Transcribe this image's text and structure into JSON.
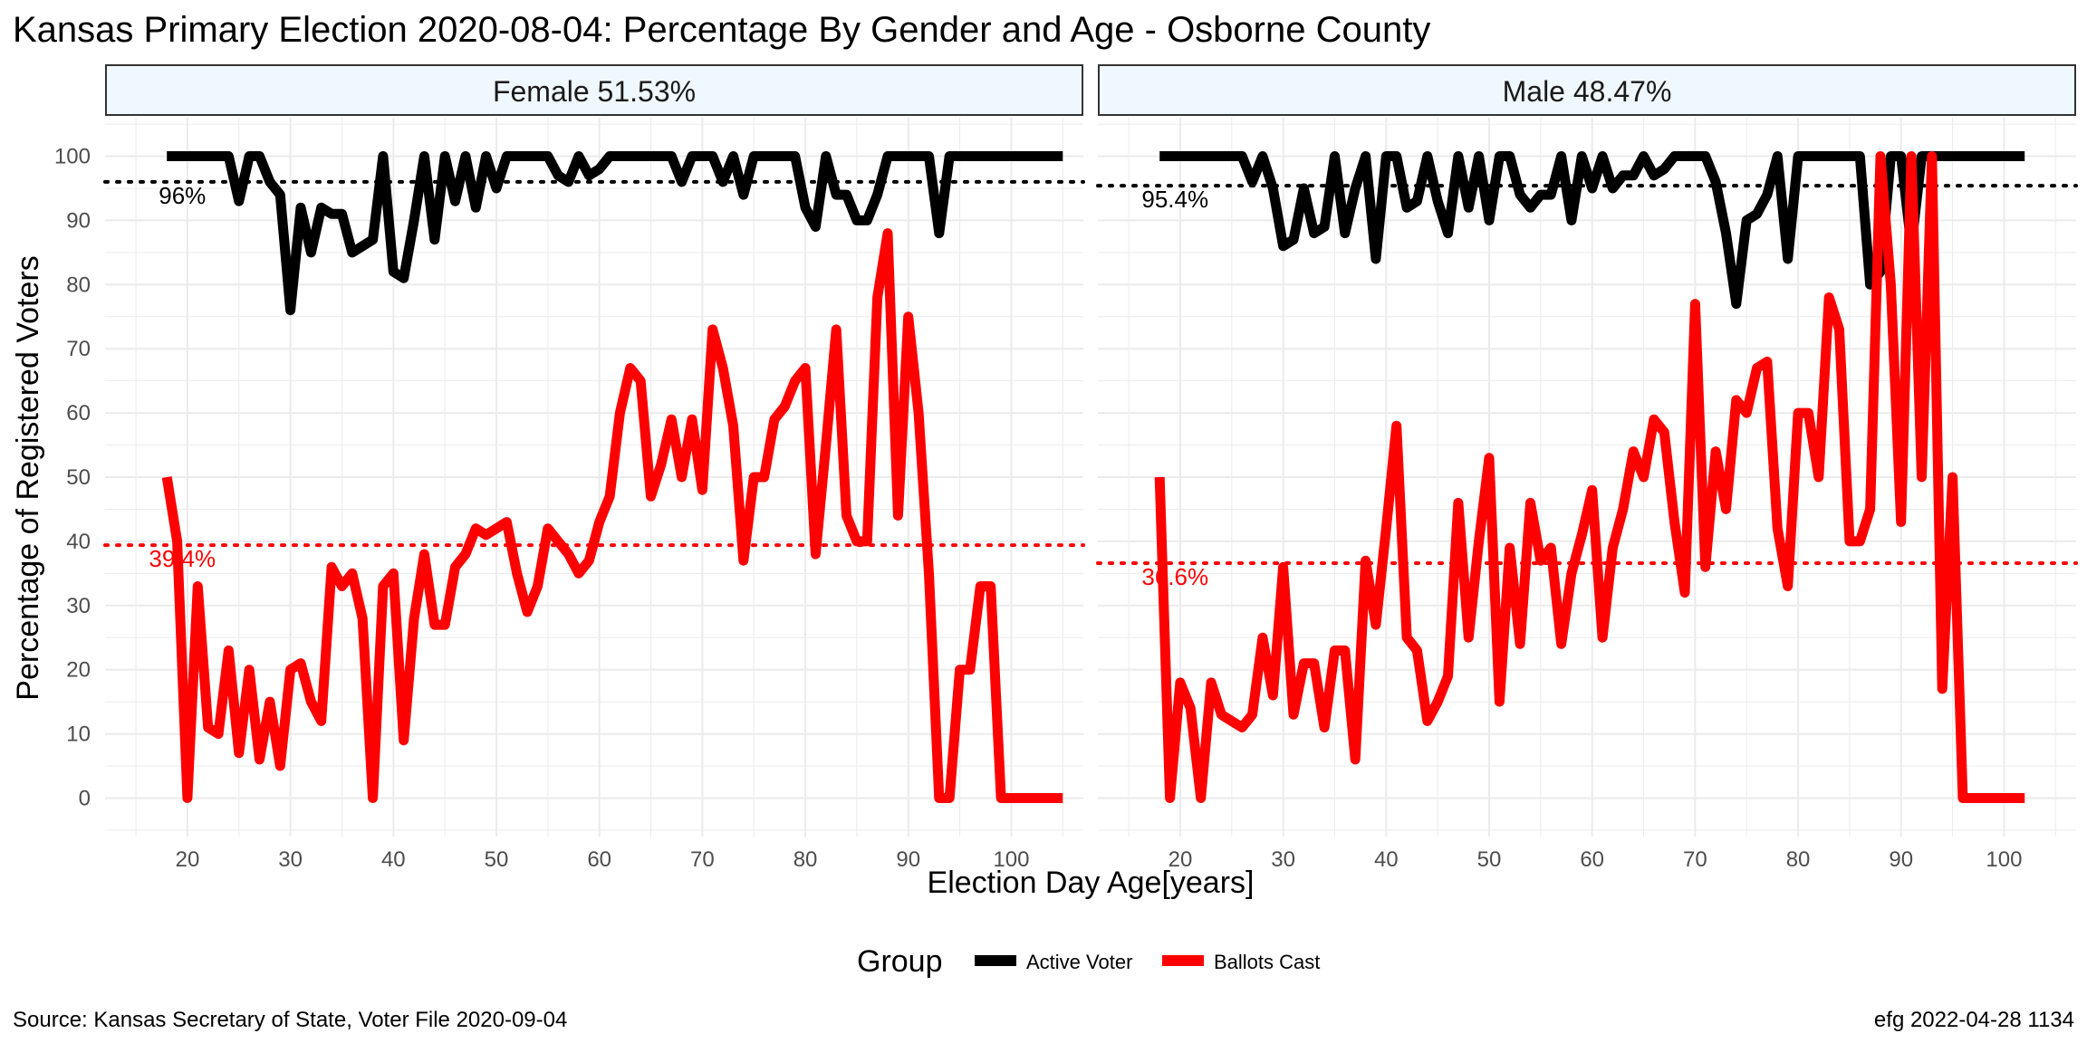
{
  "title": "Kansas Primary Election 2020-08-04:  Percentage By Gender and Age - Osborne County",
  "source": "Source:  Kansas Secretary of State, Voter File  2020-09-04",
  "stamp": "efg 2022-04-28 1134",
  "colors": {
    "active": "#000000",
    "ballots": "#ff0000",
    "strip_fill": "#f0f8ff",
    "grid": "#ebebeb"
  },
  "legend": {
    "title": "Group",
    "items": [
      {
        "label": "Active Voter",
        "color": "#000000"
      },
      {
        "label": "Ballots Cast",
        "color": "#ff0000"
      }
    ],
    "placement": "bottom"
  },
  "chart_data": [
    {
      "type": "line",
      "panel": "Female 51.53%",
      "xlabel": "Election Day Age[years]",
      "ylabel": "Percentage of Registered Voters",
      "xlim": [
        12,
        107
      ],
      "ylim": [
        -6,
        106
      ],
      "xticks": [
        20,
        30,
        40,
        50,
        60,
        70,
        80,
        90,
        100
      ],
      "yticks": [
        0,
        10,
        20,
        30,
        40,
        50,
        60,
        70,
        80,
        90,
        100
      ],
      "grid": true,
      "series": [
        {
          "name": "Active Voter",
          "color": "#000000",
          "x": [
            18,
            19,
            20,
            21,
            22,
            23,
            24,
            25,
            26,
            27,
            28,
            29,
            30,
            31,
            32,
            33,
            34,
            35,
            36,
            37,
            38,
            39,
            40,
            41,
            42,
            43,
            44,
            45,
            46,
            47,
            48,
            49,
            50,
            51,
            52,
            53,
            54,
            55,
            56,
            57,
            58,
            59,
            60,
            61,
            62,
            63,
            64,
            65,
            66,
            67,
            68,
            69,
            70,
            71,
            72,
            73,
            74,
            75,
            76,
            77,
            78,
            79,
            80,
            81,
            82,
            83,
            84,
            85,
            86,
            87,
            88,
            89,
            90,
            91,
            92,
            93,
            94,
            95,
            96,
            97,
            98,
            99,
            100,
            101,
            102,
            103,
            104,
            105
          ],
          "y": [
            100,
            100,
            100,
            100,
            100,
            100,
            100,
            93,
            100,
            100,
            96,
            94,
            76,
            92,
            85,
            92,
            91,
            91,
            85,
            86,
            87,
            100,
            82,
            81,
            90,
            100,
            87,
            100,
            93,
            100,
            92,
            100,
            95,
            100,
            100,
            100,
            100,
            100,
            97,
            96,
            100,
            97,
            98,
            100,
            100,
            100,
            100,
            100,
            100,
            100,
            96,
            100,
            100,
            100,
            96,
            100,
            94,
            100,
            100,
            100,
            100,
            100,
            92,
            89,
            100,
            94,
            94,
            90,
            90,
            94,
            100,
            100,
            100,
            100,
            100,
            88,
            100,
            100,
            100,
            100,
            100,
            100,
            100,
            100,
            100,
            100,
            100,
            100
          ]
        },
        {
          "name": "Ballots Cast",
          "color": "#ff0000",
          "x": [
            18,
            19,
            20,
            21,
            22,
            23,
            24,
            25,
            26,
            27,
            28,
            29,
            30,
            31,
            32,
            33,
            34,
            35,
            36,
            37,
            38,
            39,
            40,
            41,
            42,
            43,
            44,
            45,
            46,
            47,
            48,
            49,
            50,
            51,
            52,
            53,
            54,
            55,
            56,
            57,
            58,
            59,
            60,
            61,
            62,
            63,
            64,
            65,
            66,
            67,
            68,
            69,
            70,
            71,
            72,
            73,
            74,
            75,
            76,
            77,
            78,
            79,
            80,
            81,
            82,
            83,
            84,
            85,
            86,
            87,
            88,
            89,
            90,
            91,
            92,
            93,
            94,
            95,
            96,
            97,
            98,
            99,
            100,
            101,
            102,
            103,
            104,
            105
          ],
          "y": [
            50,
            40,
            0,
            33,
            11,
            10,
            23,
            7,
            20,
            6,
            15,
            5,
            20,
            21,
            15,
            12,
            36,
            33,
            35,
            28,
            0,
            33,
            35,
            9,
            28,
            38,
            27,
            27,
            36,
            38,
            42,
            41,
            42,
            43,
            35,
            29,
            33,
            42,
            40,
            38,
            35,
            37,
            43,
            47,
            60,
            67,
            65,
            47,
            52,
            59,
            50,
            59,
            48,
            73,
            67,
            58,
            37,
            50,
            50,
            59,
            61,
            65,
            67,
            38,
            55,
            73,
            44,
            40,
            40,
            78,
            88,
            44,
            75,
            60,
            35,
            0,
            0,
            20,
            20,
            33,
            33,
            0,
            0,
            0,
            0,
            0,
            0,
            0
          ]
        }
      ],
      "reference_lines": [
        {
          "series": "Active Voter",
          "value": 96,
          "label": "96%"
        },
        {
          "series": "Ballots Cast",
          "value": 39.4,
          "label": "39.4%"
        }
      ]
    },
    {
      "type": "line",
      "panel": "Male 48.47%",
      "xlabel": "Election Day Age[years]",
      "ylabel": "Percentage of Registered Voters",
      "xlim": [
        12,
        107
      ],
      "ylim": [
        -6,
        106
      ],
      "xticks": [
        20,
        30,
        40,
        50,
        60,
        70,
        80,
        90,
        100
      ],
      "yticks": [
        0,
        10,
        20,
        30,
        40,
        50,
        60,
        70,
        80,
        90,
        100
      ],
      "grid": true,
      "series": [
        {
          "name": "Active Voter",
          "color": "#000000",
          "x": [
            18,
            19,
            20,
            21,
            22,
            23,
            24,
            25,
            26,
            27,
            28,
            29,
            30,
            31,
            32,
            33,
            34,
            35,
            36,
            37,
            38,
            39,
            40,
            41,
            42,
            43,
            44,
            45,
            46,
            47,
            48,
            49,
            50,
            51,
            52,
            53,
            54,
            55,
            56,
            57,
            58,
            59,
            60,
            61,
            62,
            63,
            64,
            65,
            66,
            67,
            68,
            69,
            70,
            71,
            72,
            73,
            74,
            75,
            76,
            77,
            78,
            79,
            80,
            81,
            82,
            83,
            84,
            85,
            86,
            87,
            88,
            89,
            90,
            91,
            92,
            93,
            94,
            95,
            96,
            97,
            98,
            99,
            100,
            101,
            102
          ],
          "y": [
            100,
            100,
            100,
            100,
            100,
            100,
            100,
            100,
            100,
            96,
            100,
            95,
            86,
            87,
            95,
            88,
            89,
            100,
            88,
            95,
            100,
            84,
            100,
            100,
            92,
            93,
            100,
            93,
            88,
            100,
            92,
            100,
            90,
            100,
            100,
            94,
            92,
            94,
            94,
            100,
            90,
            100,
            95,
            100,
            95,
            97,
            97,
            100,
            97,
            98,
            100,
            100,
            100,
            100,
            96,
            88,
            77,
            90,
            91,
            94,
            100,
            84,
            100,
            100,
            100,
            100,
            100,
            100,
            100,
            80,
            82,
            100,
            100,
            86,
            100,
            100,
            100,
            100,
            100,
            100,
            100,
            100,
            100,
            100,
            100
          ]
        },
        {
          "name": "Ballots Cast",
          "color": "#ff0000",
          "x": [
            18,
            19,
            20,
            21,
            22,
            23,
            24,
            25,
            26,
            27,
            28,
            29,
            30,
            31,
            32,
            33,
            34,
            35,
            36,
            37,
            38,
            39,
            40,
            41,
            42,
            43,
            44,
            45,
            46,
            47,
            48,
            49,
            50,
            51,
            52,
            53,
            54,
            55,
            56,
            57,
            58,
            59,
            60,
            61,
            62,
            63,
            64,
            65,
            66,
            67,
            68,
            69,
            70,
            71,
            72,
            73,
            74,
            75,
            76,
            77,
            78,
            79,
            80,
            81,
            82,
            83,
            84,
            85,
            86,
            87,
            88,
            89,
            90,
            91,
            92,
            93,
            94,
            95,
            96,
            97,
            98,
            99,
            100,
            101,
            102
          ],
          "y": [
            50,
            0,
            18,
            14,
            0,
            18,
            13,
            12,
            11,
            13,
            25,
            16,
            36,
            13,
            21,
            21,
            11,
            23,
            23,
            6,
            37,
            27,
            42,
            58,
            25,
            23,
            12,
            15,
            19,
            46,
            25,
            40,
            53,
            15,
            39,
            24,
            46,
            37,
            39,
            24,
            35,
            41,
            48,
            25,
            39,
            45,
            54,
            50,
            59,
            57,
            43,
            32,
            77,
            36,
            54,
            45,
            62,
            60,
            67,
            68,
            42,
            33,
            60,
            60,
            50,
            78,
            73,
            40,
            40,
            45,
            100,
            80,
            43,
            100,
            50,
            100,
            17,
            50,
            0,
            0,
            0,
            0,
            0,
            0,
            0
          ]
        }
      ],
      "reference_lines": [
        {
          "series": "Active Voter",
          "value": 95.4,
          "label": "95.4%"
        },
        {
          "series": "Ballots Cast",
          "value": 36.6,
          "label": "36.6%"
        }
      ]
    }
  ]
}
